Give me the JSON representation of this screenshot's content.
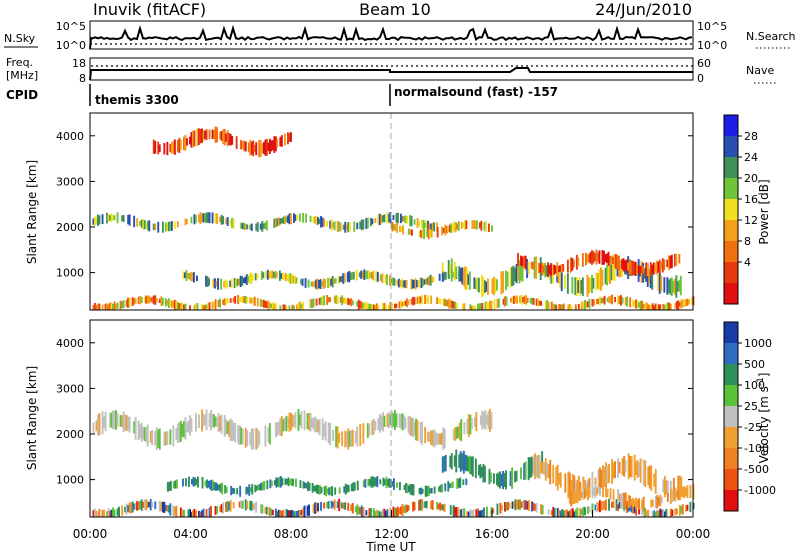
{
  "header": {
    "station": "Inuvik (fitACF)",
    "beam": "Beam 10",
    "date": "24/Jun/2010"
  },
  "top_panels": {
    "nsky_label": "N.Sky",
    "nsky_ticks": [
      "10^5",
      "10^0"
    ],
    "nsearch_label": "N.Search",
    "nsearch_ticks": [
      "10^5",
      "10^0"
    ],
    "freq_label_1": "Freq.",
    "freq_label_2": "[MHz]",
    "freq_ticks": [
      "18",
      "8"
    ],
    "nave_label": "Nave",
    "nave_ticks": [
      "60",
      "0"
    ],
    "cpid_label": "CPID",
    "cpid_modes": [
      "themis 3300",
      "normalsound (fast) -157"
    ]
  },
  "chart_data": [
    {
      "type": "heatmap",
      "name": "power-panel",
      "ylabel": "Slant Range [km]",
      "yticks": [
        1000,
        2000,
        3000,
        4000
      ],
      "ylim": [
        180,
        4500
      ],
      "xlim": [
        0,
        24
      ],
      "colorbar": {
        "label": "Power [dB]",
        "ticks": [
          "28",
          "24",
          "20",
          "16",
          "12",
          "8",
          "4"
        ],
        "colors": [
          "#1e1ee6",
          "#2a4fb0",
          "#3f8f5a",
          "#6fc23a",
          "#f0e020",
          "#f4a01c",
          "#f07010",
          "#e83a10",
          "#e01010"
        ]
      },
      "bands": [
        {
          "x0": 0.1,
          "x1": 13.8,
          "y0": 1950,
          "y1": 2250,
          "intensity": "high"
        },
        {
          "x0": 12.0,
          "x1": 16.0,
          "y0": 1800,
          "y1": 2100,
          "intensity": "mid"
        },
        {
          "x0": 3.5,
          "x1": 15.0,
          "y0": 700,
          "y1": 1000,
          "intensity": "high"
        },
        {
          "x0": 14.0,
          "x1": 23.5,
          "y0": 600,
          "y1": 1200,
          "intensity": "high"
        },
        {
          "x0": 0.1,
          "x1": 24.0,
          "y0": 180,
          "y1": 450,
          "intensity": "mid"
        },
        {
          "x0": 17.0,
          "x1": 23.5,
          "y0": 1000,
          "y1": 1400,
          "intensity": "low"
        },
        {
          "x0": 2.5,
          "x1": 8.0,
          "y0": 3650,
          "y1": 4100,
          "intensity": "low"
        }
      ]
    },
    {
      "type": "heatmap",
      "name": "velocity-panel",
      "ylabel": "Slant Range [km]",
      "xlabel": "Time UT",
      "xticks": [
        "00:00",
        "04:00",
        "08:00",
        "12:00",
        "16:00",
        "20:00",
        "00:00"
      ],
      "yticks": [
        1000,
        2000,
        3000,
        4000
      ],
      "ylim": [
        180,
        4500
      ],
      "xlim": [
        0,
        24
      ],
      "colorbar": {
        "label": "Velocity [m s^-1]",
        "ticks": [
          "1000",
          "500",
          "100",
          "25",
          "-25",
          "-100",
          "-500",
          "-1000"
        ],
        "colors": [
          "#1a3ca8",
          "#2f6cc0",
          "#2f8f5a",
          "#5cc23a",
          "#c0c0c0",
          "#f0a030",
          "#f08020",
          "#f05010",
          "#e01010"
        ]
      },
      "bands": [
        {
          "x0": 0.1,
          "x1": 16.0,
          "y0": 1800,
          "y1": 2400,
          "color": "gray"
        },
        {
          "x0": 3.0,
          "x1": 15.0,
          "y0": 700,
          "y1": 1000,
          "color": "green"
        },
        {
          "x0": 14.0,
          "x1": 18.0,
          "y0": 900,
          "y1": 1500,
          "color": "green"
        },
        {
          "x0": 17.5,
          "x1": 23.5,
          "y0": 700,
          "y1": 1400,
          "color": "orange"
        },
        {
          "x0": 0.1,
          "x1": 24.0,
          "y0": 180,
          "y1": 500,
          "color": "mixed"
        },
        {
          "x0": 19.0,
          "x1": 24.0,
          "y0": 400,
          "y1": 800,
          "color": "orange"
        }
      ]
    }
  ]
}
